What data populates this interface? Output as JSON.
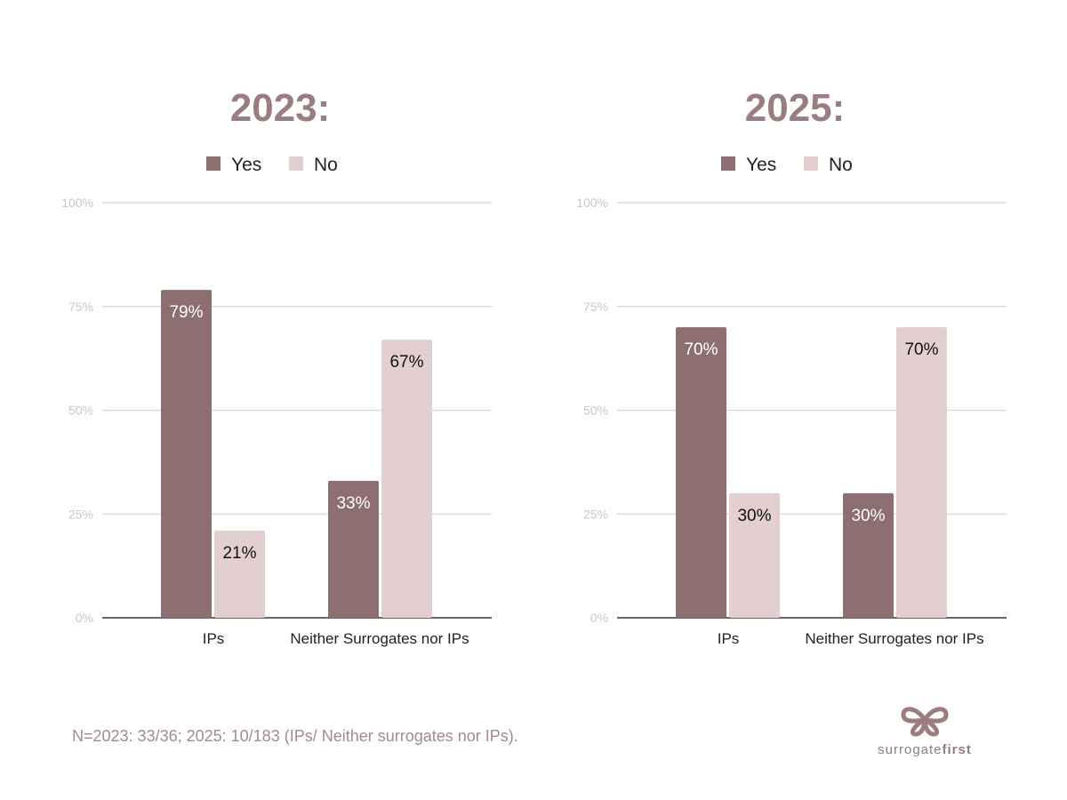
{
  "colors": {
    "yes": "#8d6e71",
    "no": "#e3cfd0",
    "title": "#9a7d7f",
    "grid": "#d6d6d6"
  },
  "chart_data": [
    {
      "type": "bar",
      "title": "2023:",
      "legend": [
        "Yes",
        "No"
      ],
      "legend_position": "top",
      "categories": [
        "IPs",
        "Neither Surrogates nor IPs"
      ],
      "series": [
        {
          "name": "Yes",
          "values": [
            79,
            33
          ],
          "labels": [
            "79%",
            "33%"
          ]
        },
        {
          "name": "No",
          "values": [
            21,
            67
          ],
          "labels": [
            "21%",
            "67%"
          ]
        }
      ],
      "yticks": [
        "0%",
        "25%",
        "50%",
        "75%",
        "100%"
      ],
      "ylim": [
        0,
        100
      ],
      "grid": true
    },
    {
      "type": "bar",
      "title": "2025:",
      "legend": [
        "Yes",
        "No"
      ],
      "legend_position": "top",
      "categories": [
        "IPs",
        "Neither Surrogates nor IPs"
      ],
      "series": [
        {
          "name": "Yes",
          "values": [
            70,
            30
          ],
          "labels": [
            "70%",
            "30%"
          ]
        },
        {
          "name": "No",
          "values": [
            30,
            70
          ],
          "labels": [
            "30%",
            "70%"
          ]
        }
      ],
      "yticks": [
        "0%",
        "25%",
        "50%",
        "75%",
        "100%"
      ],
      "ylim": [
        0,
        100
      ],
      "grid": true
    }
  ],
  "footnote": "N=2023: 33/36; 2025: 10/183 (IPs/ Neither surrogates nor IPs).",
  "logo": {
    "text_light": "surrogate",
    "text_bold": "first"
  }
}
